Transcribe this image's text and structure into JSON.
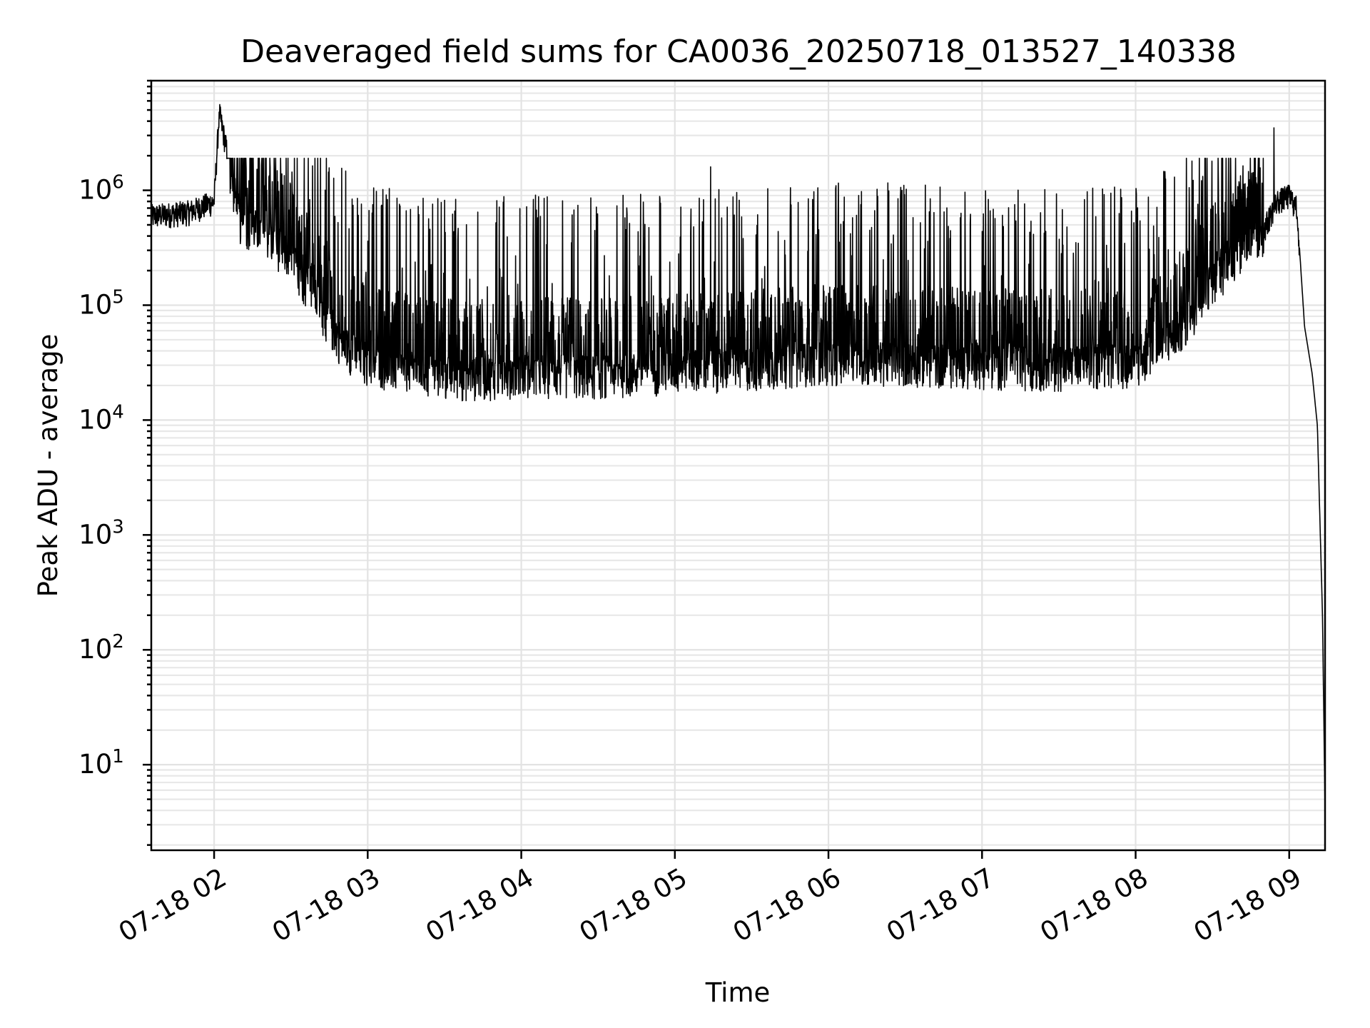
{
  "chart_data": {
    "type": "line",
    "title": "Deaveraged field sums for CA0036_20250718_013527_140338",
    "xlabel": "Time",
    "ylabel": "Peak ADU - average",
    "yscale": "log",
    "ylim": [
      1.8,
      9000000
    ],
    "xlim": [
      "2025-07-18 01:35:27",
      "2025-07-18 09:14:00"
    ],
    "grid": true,
    "x_tick_labels": [
      "07-18 02",
      "07-18 03",
      "07-18 04",
      "07-18 05",
      "07-18 06",
      "07-18 07",
      "07-18 08",
      "07-18 09"
    ],
    "x_ticks": [
      "2025-07-18 02:00",
      "2025-07-18 03:00",
      "2025-07-18 04:00",
      "2025-07-18 05:00",
      "2025-07-18 06:00",
      "2025-07-18 07:00",
      "2025-07-18 08:00",
      "2025-07-18 09:00"
    ],
    "y_tick_values": [
      10,
      100,
      1000,
      10000,
      100000,
      1000000
    ],
    "y_tick_labels": [
      {
        "base": "10",
        "exp": "1"
      },
      {
        "base": "10",
        "exp": "2"
      },
      {
        "base": "10",
        "exp": "3"
      },
      {
        "base": "10",
        "exp": "4"
      },
      {
        "base": "10",
        "exp": "5"
      },
      {
        "base": "10",
        "exp": "6"
      }
    ],
    "series": [
      {
        "color": "#000000",
        "x": [
          "2025-07-18 01:35",
          "2025-07-18 01:50",
          "2025-07-18 02:00",
          "2025-07-18 02:02",
          "2025-07-18 02:10",
          "2025-07-18 02:20",
          "2025-07-18 02:30",
          "2025-07-18 02:40",
          "2025-07-18 02:50",
          "2025-07-18 03:00",
          "2025-07-18 03:20",
          "2025-07-18 03:40",
          "2025-07-18 04:00",
          "2025-07-18 04:30",
          "2025-07-18 05:00",
          "2025-07-18 05:30",
          "2025-07-18 06:00",
          "2025-07-18 06:30",
          "2025-07-18 07:00",
          "2025-07-18 07:30",
          "2025-07-18 08:00",
          "2025-07-18 08:10",
          "2025-07-18 08:20",
          "2025-07-18 08:30",
          "2025-07-18 08:40",
          "2025-07-18 08:50",
          "2025-07-18 08:55",
          "2025-07-18 09:00",
          "2025-07-18 09:03",
          "2025-07-18 09:06",
          "2025-07-18 09:09",
          "2025-07-18 09:11",
          "2025-07-18 09:13",
          "2025-07-18 09:14"
        ],
        "baseline_values": [
          600000,
          650000,
          800000,
          4800000,
          600000,
          450000,
          280000,
          120000,
          50000,
          35000,
          28000,
          26000,
          28000,
          27000,
          30000,
          32000,
          36000,
          35000,
          33000,
          32000,
          34000,
          45000,
          80000,
          180000,
          300000,
          450000,
          800000,
          900000,
          700000,
          65000,
          25000,
          9000,
          200,
          4
        ],
        "spike_peak_max": 1900000,
        "spike_range": [
          "2025-07-18 02:05",
          "2025-07-18 08:50"
        ],
        "notable_peaks": [
          {
            "x": "2025-07-18 02:02",
            "y": 4800000
          },
          {
            "x": "2025-07-18 02:24",
            "y": 1900000
          },
          {
            "x": "2025-07-18 05:14",
            "y": 1600000
          },
          {
            "x": "2025-07-18 08:22",
            "y": 1800000
          },
          {
            "x": "2025-07-18 08:54",
            "y": 3500000
          }
        ]
      }
    ]
  }
}
